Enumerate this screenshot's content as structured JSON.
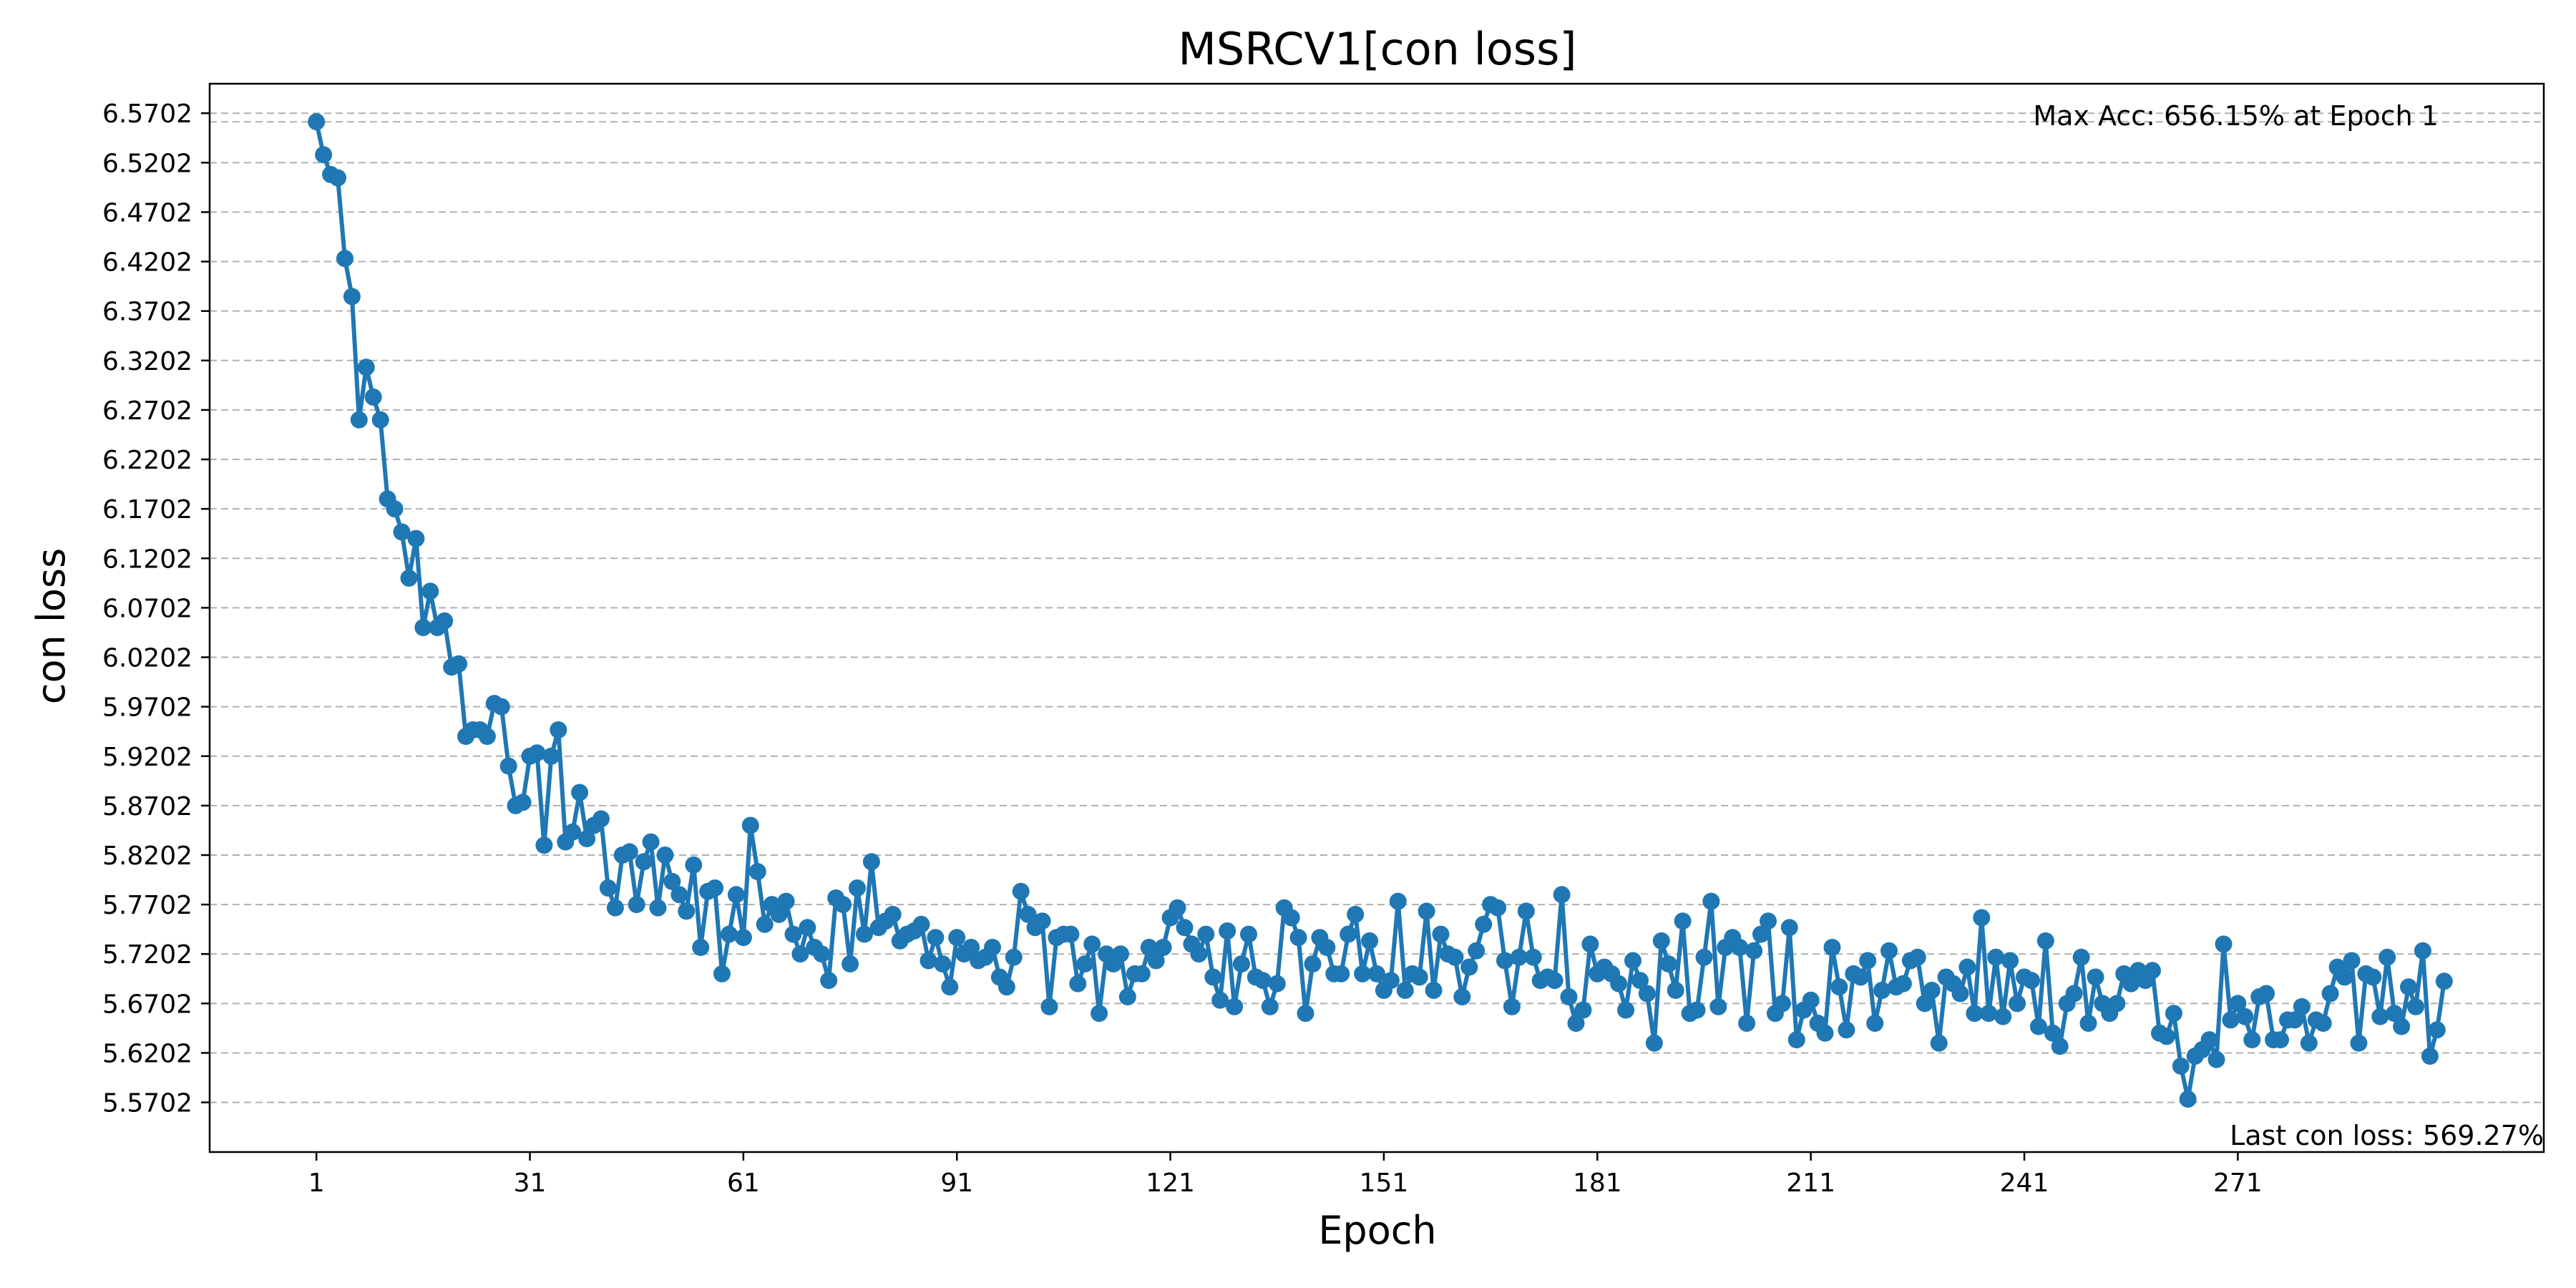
{
  "chart_data": {
    "type": "line",
    "title": "MSRCV1[con loss]",
    "xlabel": "Epoch",
    "ylabel": "con loss",
    "xlim": [
      -14,
      314
    ],
    "ylim": [
      5.52,
      6.6
    ],
    "x_ticks": [
      1,
      31,
      61,
      91,
      121,
      151,
      181,
      211,
      241,
      271
    ],
    "x_tick_labels": [
      "1",
      "31",
      "61",
      "91",
      "121",
      "151",
      "181",
      "211",
      "241",
      "271"
    ],
    "y_ticks": [
      5.5702,
      5.6202,
      5.6702,
      5.7202,
      5.7702,
      5.8202,
      5.8702,
      5.9202,
      5.9702,
      6.0202,
      6.0702,
      6.1202,
      6.1702,
      6.2202,
      6.2702,
      6.3202,
      6.3702,
      6.4202,
      6.4702,
      6.5202,
      6.5702
    ],
    "y_tick_labels": [
      "5.5702",
      "5.6202",
      "5.6702",
      "5.7202",
      "5.7702",
      "5.8202",
      "5.8702",
      "5.9202",
      "5.9702",
      "6.0202",
      "6.0702",
      "6.1202",
      "6.1702",
      "6.2202",
      "6.2702",
      "6.3202",
      "6.3702",
      "6.4202",
      "6.4702",
      "6.5202",
      "6.5702"
    ],
    "grid": "horizontal dashed",
    "color": "#1f77b4",
    "max_line_y": 6.5615,
    "annotations": {
      "max": "Max Acc: 656.15% at Epoch 1",
      "last": "Last con loss: 569.27%"
    },
    "series": [
      {
        "x_start": 1,
        "values": [
          6.5615,
          6.5282,
          6.5082,
          6.5049,
          6.4233,
          6.3849,
          6.2602,
          6.3133,
          6.2832,
          6.2602,
          6.1802,
          6.1702,
          6.1469,
          6.1002,
          6.1402,
          6.0502,
          6.0869,
          6.0502,
          6.0569,
          6.0102,
          6.0135,
          5.9402,
          5.9468,
          5.9468,
          5.9402,
          5.9735,
          5.9702,
          5.9102,
          5.8702,
          5.8735,
          5.9202,
          5.9235,
          5.8302,
          5.9202,
          5.9468,
          5.8335,
          5.8435,
          5.8835,
          5.8368,
          5.8502,
          5.8568,
          5.7869,
          5.7669,
          5.8202,
          5.8235,
          5.7702,
          5.8135,
          5.8335,
          5.7669,
          5.8202,
          5.7935,
          5.7802,
          5.7635,
          5.8102,
          5.7269,
          5.7835,
          5.7869,
          5.7002,
          5.7402,
          5.7802,
          5.7369,
          5.8502,
          5.8035,
          5.7502,
          5.7702,
          5.7602,
          5.7735,
          5.7402,
          5.7202,
          5.7469,
          5.7269,
          5.7202,
          5.6935,
          5.7769,
          5.7702,
          5.7102,
          5.7869,
          5.7402,
          5.8135,
          5.7469,
          5.7535,
          5.7602,
          5.7335,
          5.7402,
          5.7435,
          5.7502,
          5.7135,
          5.7369,
          5.7102,
          5.6869,
          5.7369,
          5.7202,
          5.7269,
          5.7135,
          5.7169,
          5.7269,
          5.6969,
          5.6869,
          5.7169,
          5.7835,
          5.7602,
          5.7469,
          5.7535,
          5.6669,
          5.7369,
          5.7402,
          5.7402,
          5.6902,
          5.7102,
          5.7302,
          5.6602,
          5.7202,
          5.7102,
          5.7202,
          5.6769,
          5.7002,
          5.7002,
          5.7269,
          5.7135,
          5.7269,
          5.7569,
          5.7669,
          5.7469,
          5.7302,
          5.7202,
          5.7402,
          5.6969,
          5.6735,
          5.7435,
          5.6669,
          5.7102,
          5.7402,
          5.6969,
          5.6935,
          5.6669,
          5.6902,
          5.7669,
          5.7569,
          5.7369,
          5.6602,
          5.7102,
          5.7369,
          5.7269,
          5.7002,
          5.7002,
          5.7402,
          5.7602,
          5.7002,
          5.7335,
          5.7002,
          5.6835,
          5.6935,
          5.7735,
          5.6835,
          5.7002,
          5.6969,
          5.7635,
          5.6835,
          5.7402,
          5.7202,
          5.7169,
          5.6769,
          5.7069,
          5.7235,
          5.7502,
          5.7702,
          5.7669,
          5.7135,
          5.6669,
          5.7169,
          5.7635,
          5.7169,
          5.6935,
          5.6969,
          5.6935,
          5.7802,
          5.6769,
          5.6502,
          5.6635,
          5.7302,
          5.7002,
          5.7069,
          5.7002,
          5.6902,
          5.6635,
          5.7135,
          5.6935,
          5.6802,
          5.6302,
          5.7335,
          5.7102,
          5.6835,
          5.7535,
          5.6602,
          5.6635,
          5.7169,
          5.7735,
          5.6669,
          5.7269,
          5.7369,
          5.7269,
          5.6502,
          5.7235,
          5.7402,
          5.7535,
          5.6602,
          5.6702,
          5.7469,
          5.6335,
          5.6635,
          5.6735,
          5.6502,
          5.6402,
          5.7269,
          5.6869,
          5.6435,
          5.7002,
          5.6969,
          5.7135,
          5.6502,
          5.6835,
          5.7235,
          5.6869,
          5.6902,
          5.7135,
          5.7169,
          5.6702,
          5.6835,
          5.6302,
          5.6969,
          5.6902,
          5.6802,
          5.7069,
          5.6602,
          5.7569,
          5.6602,
          5.7169,
          5.6569,
          5.7135,
          5.6702,
          5.6969,
          5.6935,
          5.6469,
          5.7335,
          5.6402,
          5.6269,
          5.6702,
          5.6802,
          5.7169,
          5.6502,
          5.6969,
          5.6702,
          5.6602,
          5.6702,
          5.7002,
          5.6902,
          5.7035,
          5.6935,
          5.7035,
          5.6402,
          5.6369,
          5.6602,
          5.6069,
          5.5735,
          5.6169,
          5.6235,
          5.6335,
          5.6135,
          5.7302,
          5.6535,
          5.6702,
          5.6569,
          5.6335,
          5.6769,
          5.6802,
          5.6335,
          5.6335,
          5.6535,
          5.6535,
          5.6669,
          5.6302,
          5.6535,
          5.6502,
          5.6802,
          5.7069,
          5.6969,
          5.7135,
          5.6302,
          5.7002,
          5.6969,
          5.6569,
          5.7169,
          5.6602,
          5.6469,
          5.6869,
          5.6669,
          5.7235,
          5.6169,
          5.6435,
          5.6927
        ]
      }
    ]
  }
}
